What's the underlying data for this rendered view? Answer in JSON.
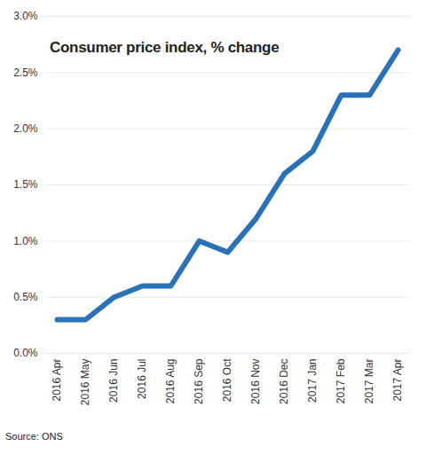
{
  "chart_data": {
    "type": "line",
    "title": "Consumer price index, % change",
    "caption": "Source: ONS",
    "categories": [
      "2016 Apr",
      "2016 May",
      "2016 Jun",
      "2016 Jul",
      "2016 Aug",
      "2016 Sep",
      "2016 Oct",
      "2016 Nov",
      "2016 Dec",
      "2017 Jan",
      "2017 Feb",
      "2017 Mar",
      "2017 Apr"
    ],
    "values": [
      0.3,
      0.3,
      0.5,
      0.6,
      0.6,
      1.0,
      0.9,
      1.2,
      1.6,
      1.8,
      2.3,
      2.3,
      2.7
    ],
    "color": "#2a72b8",
    "ylim": [
      0,
      3
    ],
    "yticks": [
      {
        "value": 0,
        "label": "0.0%"
      },
      {
        "value": 0.5,
        "label": "0.5%"
      },
      {
        "value": 1,
        "label": "1.0%"
      },
      {
        "value": 1.5,
        "label": "1.5%"
      },
      {
        "value": 2,
        "label": "2.0%"
      },
      {
        "value": 2.5,
        "label": "2.5%"
      },
      {
        "value": 3,
        "label": "3.0%"
      }
    ],
    "grid": true
  }
}
